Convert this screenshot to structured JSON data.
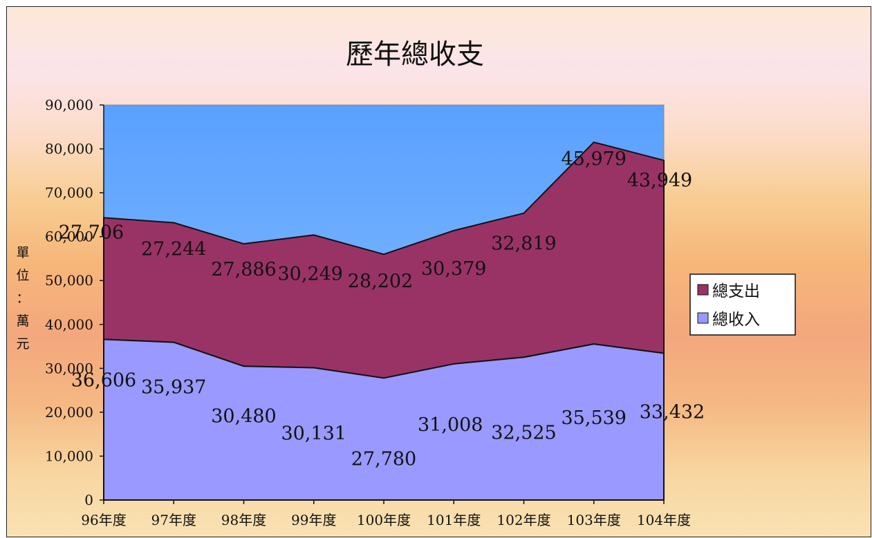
{
  "chart_data": {
    "type": "area",
    "stacked": true,
    "title": "歷年總收支",
    "ylabel": "單位：萬元",
    "ylabel_chars": [
      "單",
      "位",
      "：",
      "萬",
      "元"
    ],
    "ylim": [
      0,
      90000
    ],
    "yticks": [
      "0",
      "10,000",
      "20,000",
      "30,000",
      "40,000",
      "50,000",
      "60,000",
      "70,000",
      "80,000",
      "90,000"
    ],
    "yticks_values": [
      0,
      10000,
      20000,
      30000,
      40000,
      50000,
      60000,
      70000,
      80000,
      90000
    ],
    "categories": [
      "96年度",
      "97年度",
      "98年度",
      "99年度",
      "100年度",
      "101年度",
      "102年度",
      "103年度",
      "104年度"
    ],
    "series": [
      {
        "name": "總收入",
        "values": [
          36606,
          35937,
          30480,
          30131,
          27780,
          31008,
          32525,
          35539,
          33432
        ],
        "labels": [
          "36,606",
          "35,937",
          "30,480",
          "30,131",
          "27,780",
          "31,008",
          "32,525",
          "35,539",
          "33,432"
        ],
        "color": "#9999ff"
      },
      {
        "name": "總支出",
        "values": [
          27706,
          27244,
          27886,
          30249,
          28202,
          30379,
          32819,
          45979,
          43949
        ],
        "labels": [
          "27,706",
          "27,244",
          "27,886",
          "30,249",
          "28,202",
          "30,379",
          "32,819",
          "45,979",
          "43,949"
        ],
        "color": "#993366"
      }
    ],
    "legend": {
      "placement": "right",
      "entries": [
        "總支出",
        "總收入"
      ]
    },
    "colors": {
      "plot_background_top": "#5aa0ff",
      "plot_background_bottom": "#8ec5ff",
      "outline": "#111111"
    }
  }
}
